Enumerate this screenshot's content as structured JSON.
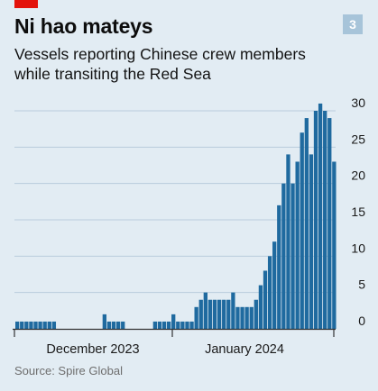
{
  "header": {
    "title": "Ni hao mateys",
    "subtitle": "Vessels reporting Chinese crew members while transiting the Red Sea",
    "chart_number": "3",
    "source": "Source: Spire Global"
  },
  "colors": {
    "background": "#e2ecf3",
    "bar": "#1f6a9f",
    "gridline": "#b9cddc",
    "axis": "#333333",
    "red_tag": "#e3120b",
    "badge": "#a7c4d9"
  },
  "chart_data": {
    "type": "bar",
    "title": "Ni hao mateys",
    "subtitle": "Vessels reporting Chinese crew members while transiting the Red Sea",
    "x_unit": "day",
    "x_range": [
      "2023-11-22",
      "2024-01-29"
    ],
    "x_tick_labels": [
      "December 2023",
      "January 2024"
    ],
    "ylim": [
      0,
      30
    ],
    "y_ticks": [
      0,
      5,
      10,
      15,
      20,
      25,
      30
    ],
    "y_axis_position": "right",
    "grid": true,
    "values": [
      1,
      1,
      1,
      1,
      1,
      1,
      1,
      1,
      1,
      0,
      0,
      0,
      0,
      0,
      0,
      0,
      0,
      0,
      0,
      2,
      1,
      1,
      1,
      1,
      0,
      0,
      0,
      0,
      0,
      0,
      1,
      1,
      1,
      1,
      2,
      1,
      1,
      1,
      1,
      3,
      4,
      5,
      4,
      4,
      4,
      4,
      4,
      5,
      3,
      3,
      3,
      3,
      4,
      6,
      8,
      10,
      12,
      17,
      20,
      24,
      20,
      23,
      27,
      29,
      24,
      30,
      31,
      30,
      29,
      23
    ]
  }
}
